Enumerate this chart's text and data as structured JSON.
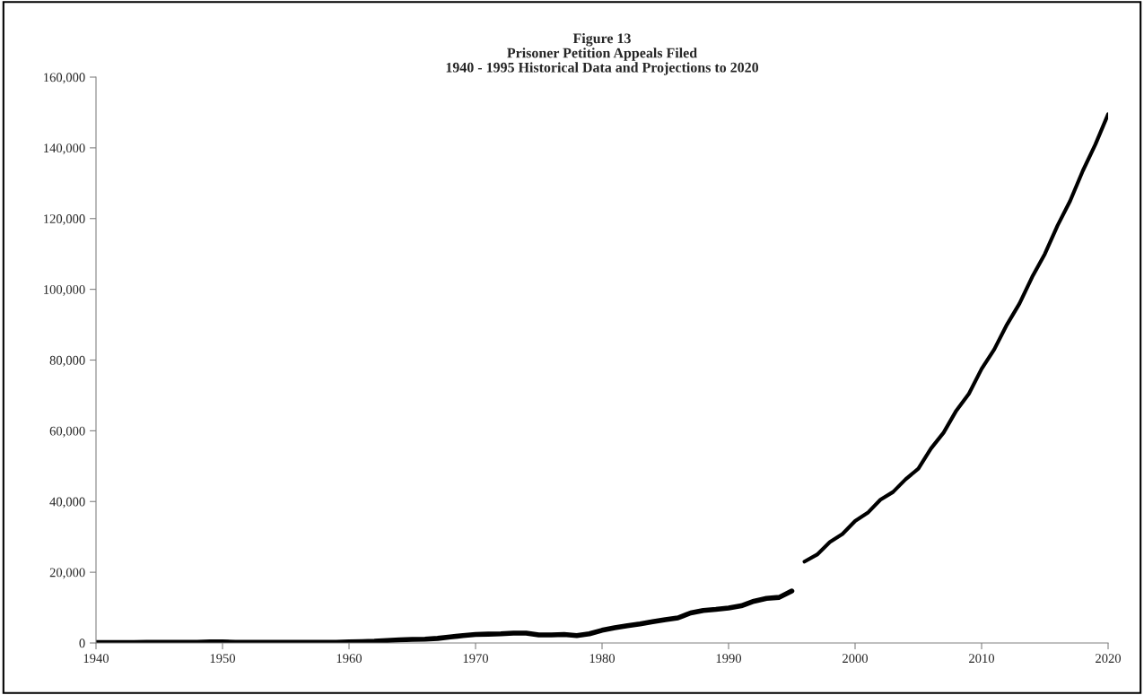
{
  "chart_data": {
    "type": "line",
    "title": "Figure 13\nPrisoner Petition Appeals Filed\n1940 - 1995 Historical Data and Projections to 2020",
    "series": [
      {
        "color": "#000000",
        "x": [
          1940,
          1941,
          1942,
          1943,
          1944,
          1945,
          1946,
          1947,
          1948,
          1949,
          1950,
          1951,
          1952,
          1953,
          1954,
          1955,
          1956,
          1957,
          1958,
          1959,
          1960,
          1961,
          1962,
          1963,
          1964,
          1965,
          1966,
          1967,
          1968,
          1969,
          1970,
          1971,
          1972,
          1973,
          1974,
          1975,
          1976,
          1977,
          1978,
          1979,
          1980,
          1981,
          1982,
          1983,
          1984,
          1985,
          1986,
          1987,
          1988,
          1989,
          1990,
          1991,
          1992,
          1993,
          1994,
          1995
        ],
        "values": [
          100,
          100,
          100,
          100,
          200,
          200,
          200,
          200,
          200,
          300,
          300,
          200,
          200,
          200,
          200,
          200,
          200,
          200,
          200,
          200,
          300,
          400,
          500,
          700,
          900,
          1000,
          1100,
          1300,
          1700,
          2100,
          2400,
          2500,
          2600,
          2800,
          2800,
          2300,
          2300,
          2400,
          2100,
          2600,
          3600,
          4300,
          4900,
          5400,
          6000,
          6600,
          7100,
          8500,
          9200,
          9500,
          9900,
          10500,
          11800,
          12600,
          12900,
          14700
        ]
      },
      {
        "color": "#000000",
        "x": [
          1996,
          1997,
          1998,
          1999,
          2000,
          2001,
          2002,
          2003,
          2004,
          2005,
          2006,
          2007,
          2008,
          2009,
          2010,
          2011,
          2012,
          2013,
          2014,
          2015,
          2016,
          2017,
          2018,
          2019,
          2020
        ],
        "values": [
          23000,
          25000,
          28500,
          30800,
          34500,
          36800,
          40500,
          42700,
          46300,
          49300,
          55000,
          59500,
          65700,
          70500,
          77500,
          83000,
          90000,
          96000,
          103500,
          110000,
          118000,
          125000,
          133500,
          141000,
          149500
        ]
      }
    ],
    "xlim": [
      1940,
      2020
    ],
    "xticks": [
      1940,
      1950,
      1960,
      1970,
      1980,
      1990,
      2000,
      2010,
      2020
    ],
    "ylim": [
      0,
      160000
    ],
    "yticks": [
      {
        "value": 0,
        "label": "0"
      },
      {
        "value": 20000,
        "label": "20,000"
      },
      {
        "value": 40000,
        "label": "40,000"
      },
      {
        "value": 60000,
        "label": "60,000"
      },
      {
        "value": 80000,
        "label": "80,000"
      },
      {
        "value": 100000,
        "label": "100,000"
      },
      {
        "value": 120000,
        "label": "120,000"
      },
      {
        "value": 140000,
        "label": "140,000"
      },
      {
        "value": 160000,
        "label": "160,000"
      }
    ],
    "grid": false
  }
}
